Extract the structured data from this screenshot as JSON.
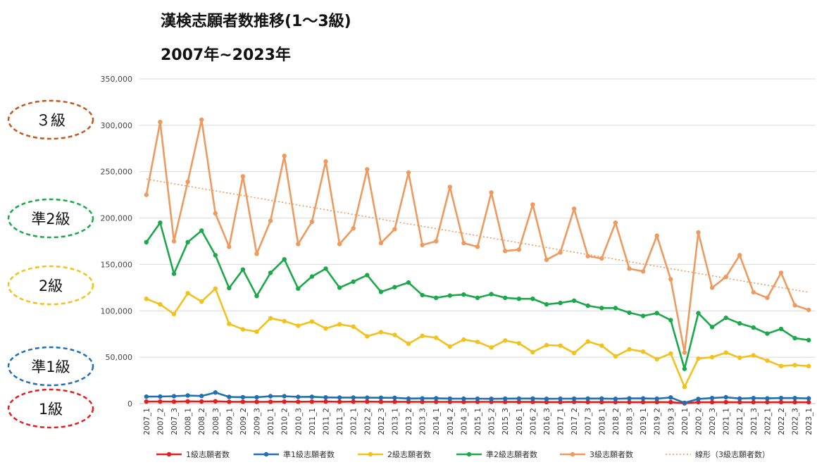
{
  "title_line1": "漢検志願者数推移(1～3級)",
  "title_line2": "2007年~2023年",
  "grade_labels": [
    {
      "text": "３級",
      "color": "#C05A1E",
      "series": "3級志願者数"
    },
    {
      "text": "準2級",
      "color": "#1BA84A",
      "series": "準2級志願者数"
    },
    {
      "text": "2級",
      "color": "#F2C11C",
      "series": "2級志願者数"
    },
    {
      "text": "準1級",
      "color": "#1F6FB5",
      "series": "準1級志願者数"
    },
    {
      "text": "1級",
      "color": "#E02020",
      "series": "1級志願者数"
    }
  ],
  "chart_data": {
    "type": "line",
    "ylim": [
      0,
      350000
    ],
    "yticks": [
      "0",
      "50,000",
      "100,000",
      "150,000",
      "200,000",
      "250,000",
      "300,000",
      "350,000"
    ],
    "grid": true,
    "legend_position": "bottom",
    "x": [
      "2007_1",
      "2007_2",
      "2007_3",
      "2008_1",
      "2008_2",
      "2008_3",
      "2009_1",
      "2009_2",
      "2009_3",
      "2010_1",
      "2010_2",
      "2010_3",
      "2011_1",
      "2011_2",
      "2011_3",
      "2012_1",
      "2012_2",
      "2012_3",
      "2013_1",
      "2013_2",
      "2013_3",
      "2014_1",
      "2014_2",
      "2014_3",
      "2015_1",
      "2015_2",
      "2015_3",
      "2016_1",
      "2016_2",
      "2016_3",
      "2017_1",
      "2017_2",
      "2017_3",
      "2018_1",
      "2018_2",
      "2018_3",
      "2019_1",
      "2019_2",
      "2019_3",
      "2020_1",
      "2020_2",
      "2020_3",
      "2021_1",
      "2021_2",
      "2021_3",
      "2022_1",
      "2022_2",
      "2022_3",
      "2023_1"
    ],
    "series": [
      {
        "name": "1級志願者数",
        "color": "#E02020",
        "values": [
          2200,
          2300,
          2100,
          2400,
          2300,
          2500,
          2000,
          2000,
          1900,
          2000,
          2100,
          2000,
          2100,
          2200,
          2000,
          2100,
          2100,
          2000,
          2000,
          2000,
          1900,
          1900,
          1900,
          1800,
          1900,
          1900,
          1800,
          1800,
          1800,
          1700,
          1700,
          1800,
          1700,
          1700,
          1700,
          1600,
          1600,
          1700,
          1600,
          300,
          1500,
          1500,
          1600,
          1500,
          1500,
          1500,
          1600,
          1500,
          1500
        ]
      },
      {
        "name": "準1級志願者数",
        "color": "#1F6FB5",
        "values": [
          7500,
          7600,
          8000,
          8700,
          8200,
          12000,
          7200,
          6900,
          6800,
          8000,
          8000,
          7200,
          7400,
          6700,
          6500,
          6500,
          6400,
          6300,
          6200,
          5500,
          5600,
          5800,
          5400,
          5300,
          5300,
          5200,
          5400,
          5500,
          5500,
          5200,
          5300,
          5400,
          5500,
          5500,
          5200,
          5600,
          5600,
          5300,
          6600,
          800,
          5000,
          6000,
          6800,
          5500,
          5900,
          5600,
          6000,
          5900,
          5600
        ]
      },
      {
        "name": "2級志願者数",
        "color": "#F2C11C",
        "values": [
          113000,
          107000,
          96500,
          119000,
          110000,
          124000,
          86000,
          80000,
          77500,
          92000,
          89000,
          84000,
          88500,
          81000,
          85500,
          83000,
          72500,
          77000,
          74000,
          64500,
          73000,
          71000,
          61500,
          69000,
          66500,
          60500,
          68000,
          65000,
          55500,
          63000,
          62500,
          54500,
          67000,
          62500,
          51000,
          58500,
          56000,
          48000,
          54000,
          18000,
          48500,
          50000,
          55000,
          49500,
          52000,
          46500,
          40500,
          41500,
          40500
        ]
      },
      {
        "name": "準2級志願者数",
        "color": "#1BA84A",
        "values": [
          174000,
          195000,
          140000,
          174000,
          186500,
          160000,
          124500,
          144500,
          116000,
          141000,
          155500,
          124000,
          137000,
          145500,
          125000,
          131500,
          138500,
          120500,
          125500,
          130500,
          117000,
          114000,
          116500,
          117500,
          114000,
          118000,
          114000,
          113000,
          113000,
          107000,
          108500,
          111000,
          105500,
          103000,
          103000,
          98000,
          94500,
          97500,
          90000,
          37500,
          97500,
          82500,
          92500,
          86500,
          82000,
          75500,
          80500,
          70500,
          68500
        ]
      },
      {
        "name": "3級志願者数",
        "color": "#EE9A5E",
        "values": [
          225000,
          303500,
          175000,
          239000,
          306000,
          205000,
          169000,
          245000,
          161500,
          197000,
          267000,
          172000,
          196000,
          261000,
          172000,
          189000,
          252500,
          173000,
          188000,
          249000,
          171000,
          175000,
          233500,
          173000,
          169000,
          227500,
          164500,
          166000,
          214500,
          155000,
          163000,
          210000,
          159000,
          156500,
          195000,
          145500,
          142500,
          181000,
          134000,
          55000,
          184500,
          125000,
          136500,
          160000,
          120000,
          114000,
          141000,
          106000,
          101000
        ]
      }
    ],
    "trendline": {
      "name": "線形（3級志願者数）",
      "color": "#EE9A5E",
      "start": 242000,
      "end": 120000
    }
  }
}
